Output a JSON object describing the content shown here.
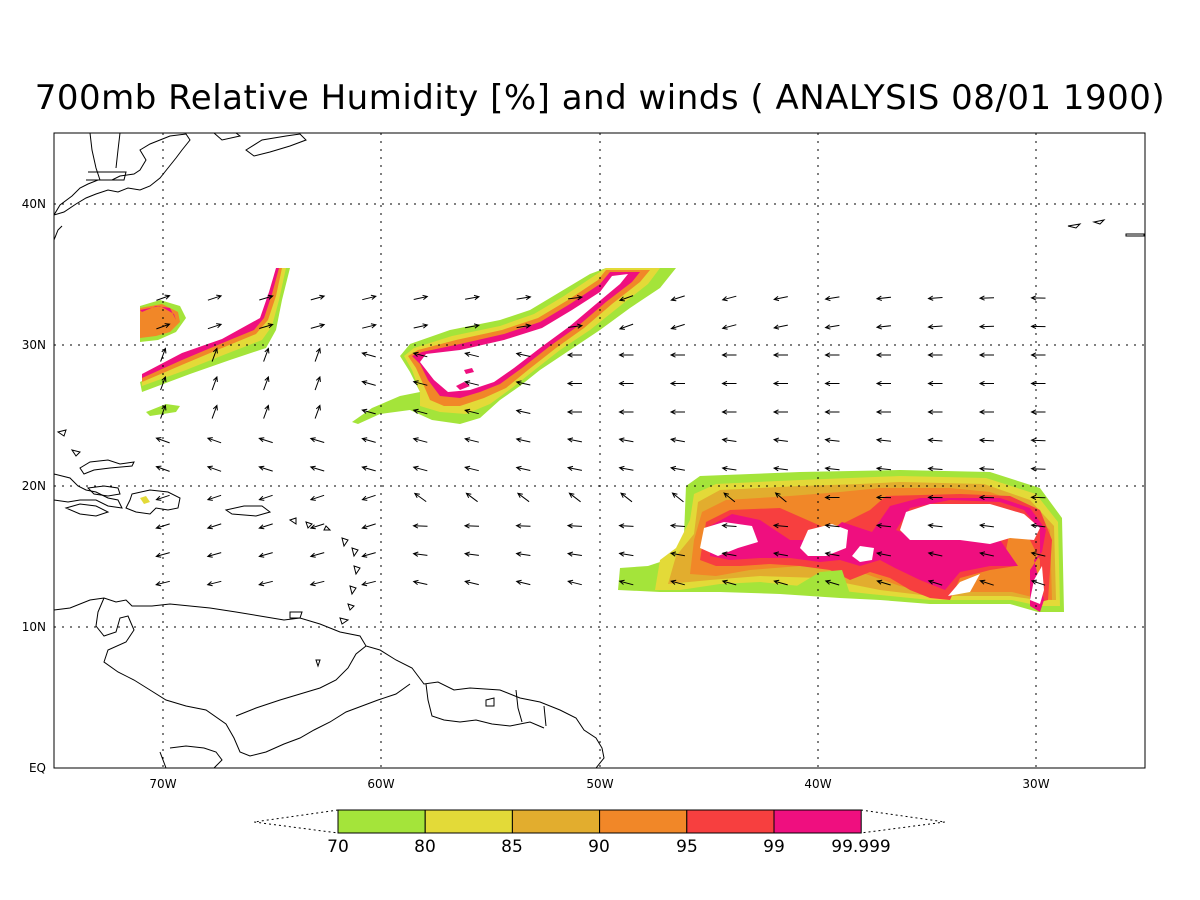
{
  "title": "700mb Relative Humidity [%] and winds ( ANALYSIS 08/01 1900)",
  "lat_ticks": [
    "40N",
    "30N",
    "20N",
    "10N",
    "EQ"
  ],
  "lon_ticks": [
    "70W",
    "60W",
    "50W",
    "40W",
    "30W"
  ],
  "colorbar": {
    "colors": [
      "#a4e43a",
      "#e3da38",
      "#e2ad2e",
      "#f18728",
      "#f73f3f",
      "#ef0f7f"
    ],
    "labels": [
      "70",
      "80",
      "85",
      "90",
      "95",
      "99",
      "99.999"
    ]
  }
}
